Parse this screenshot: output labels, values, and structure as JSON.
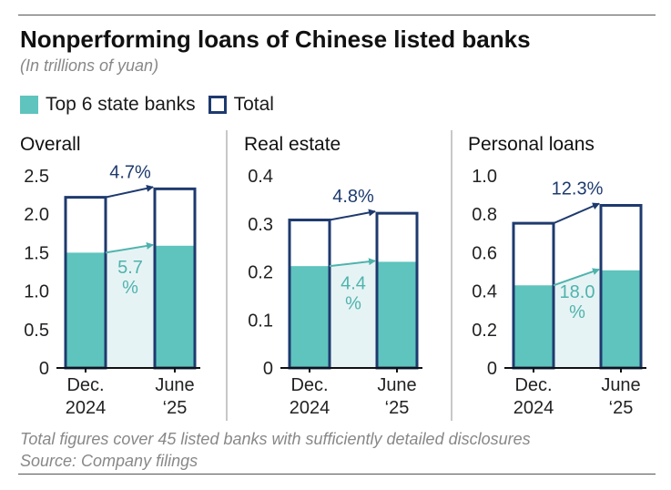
{
  "title": "Nonperforming loans of Chinese listed banks",
  "subtitle": "(In trillions of yuan)",
  "legend": {
    "state_banks": "Top 6 state banks",
    "total": "Total"
  },
  "footnote": "Total figures cover 45 listed banks with sufficiently detailed disclosures",
  "source": "Source: Company filings",
  "colors": {
    "state": "#5ec4bd",
    "total": "#1e3a6e",
    "state_pct": "#4fb3ad",
    "wedge": "#e6f3f4"
  },
  "chart_data": [
    {
      "type": "bar",
      "title": "Overall",
      "categories": [
        [
          "Dec.",
          "2024"
        ],
        [
          "June",
          "‘25"
        ]
      ],
      "series": [
        {
          "name": "Total",
          "values": [
            2.22,
            2.33
          ]
        },
        {
          "name": "Top 6 state banks",
          "values": [
            1.5,
            1.59
          ]
        }
      ],
      "ylim": [
        0,
        2.5
      ],
      "yticks": [
        0,
        0.5,
        1.0,
        1.5,
        2.0,
        2.5
      ],
      "ytick_labels": [
        "0",
        "0.5",
        "1.0",
        "1.5",
        "2.0",
        "2.5"
      ],
      "annotations": {
        "total_change": "4.7%",
        "state_change": [
          "5.7",
          "%"
        ]
      }
    },
    {
      "type": "bar",
      "title": "Real estate",
      "categories": [
        [
          "Dec.",
          "2024"
        ],
        [
          "June",
          "‘25"
        ]
      ],
      "series": [
        {
          "name": "Total",
          "values": [
            0.308,
            0.322
          ]
        },
        {
          "name": "Top 6 state banks",
          "values": [
            0.212,
            0.221
          ]
        }
      ],
      "ylim": [
        0,
        0.4
      ],
      "yticks": [
        0,
        0.1,
        0.2,
        0.3,
        0.4
      ],
      "ytick_labels": [
        "0",
        "0.1",
        "0.2",
        "0.3",
        "0.4"
      ],
      "annotations": {
        "total_change": "4.8%",
        "state_change": [
          "4.4",
          "%"
        ]
      }
    },
    {
      "type": "bar",
      "title": "Personal loans",
      "categories": [
        [
          "Dec.",
          "2024"
        ],
        [
          "June",
          "‘25"
        ]
      ],
      "series": [
        {
          "name": "Total",
          "values": [
            0.753,
            0.846
          ]
        },
        {
          "name": "Top 6 state banks",
          "values": [
            0.43,
            0.508
          ]
        }
      ],
      "ylim": [
        0,
        1.0
      ],
      "yticks": [
        0,
        0.2,
        0.4,
        0.6,
        0.8,
        1.0
      ],
      "ytick_labels": [
        "0",
        "0.2",
        "0.4",
        "0.6",
        "0.8",
        "1.0"
      ],
      "annotations": {
        "total_change": "12.3%",
        "state_change": [
          "18.0",
          "%"
        ]
      }
    }
  ]
}
